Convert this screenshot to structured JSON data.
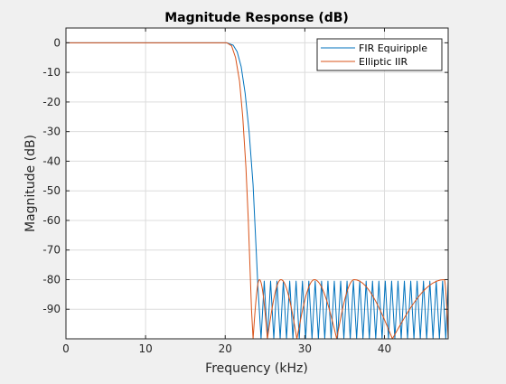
{
  "chart_data": {
    "type": "line",
    "title": "Magnitude Response (dB)",
    "xlabel": "Frequency (kHz)",
    "ylabel": "Magnitude (dB)",
    "xlim": [
      0,
      48
    ],
    "ylim": [
      -100,
      5
    ],
    "x_ticks": [
      0,
      10,
      20,
      30,
      40
    ],
    "y_ticks": [
      0,
      -10,
      -20,
      -30,
      -40,
      -50,
      -60,
      -70,
      -80,
      -90
    ],
    "grid": true,
    "legend_position": "top-right",
    "series": [
      {
        "name": "FIR Equiripple",
        "color": "#0072BD",
        "passband_end_khz": 20.2,
        "transition_points": [
          [
            20.2,
            0
          ],
          [
            21,
            -0.8
          ],
          [
            21.5,
            -3
          ],
          [
            22,
            -8
          ],
          [
            22.5,
            -17
          ],
          [
            23,
            -30
          ],
          [
            23.5,
            -48
          ],
          [
            23.8,
            -65
          ],
          [
            24.1,
            -82
          ]
        ],
        "stopband_start_khz": 24.1,
        "stopband_ripple_khz": 0.8,
        "stopband_peak_db": -80.5
      },
      {
        "name": "Elliptic IIR",
        "color": "#D95319",
        "passband_end_khz": 20.2,
        "transition_points": [
          [
            20.2,
            0
          ],
          [
            20.8,
            -1
          ],
          [
            21.3,
            -5
          ],
          [
            21.8,
            -13
          ],
          [
            22.2,
            -25
          ],
          [
            22.6,
            -42
          ],
          [
            22.9,
            -60
          ],
          [
            23.1,
            -75
          ],
          [
            23.3,
            -90
          ]
        ],
        "stopband_nulls_khz": [
          23.5,
          25.3,
          29.0,
          34.0,
          41.0
        ],
        "stopband_peaks_khz": [
          24.3,
          27.0,
          31.2,
          36.2,
          47.5
        ],
        "stopband_peak_db": -80
      }
    ]
  }
}
